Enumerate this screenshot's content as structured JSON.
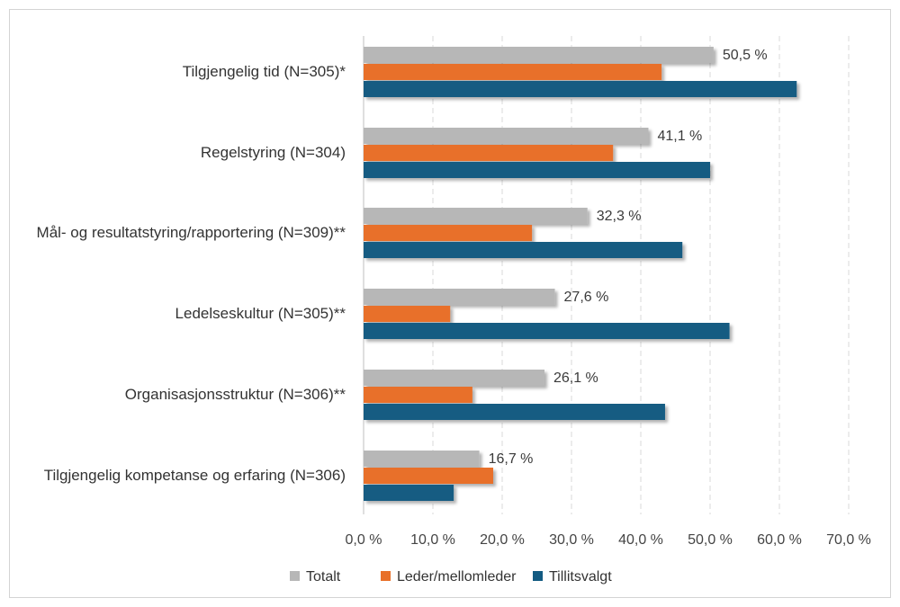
{
  "chart_data": {
    "type": "bar",
    "orientation": "horizontal",
    "title": "",
    "xlabel": "",
    "ylabel": "",
    "xlim": [
      0,
      70
    ],
    "x_ticks": [
      "0,0 %",
      "10,0 %",
      "20,0 %",
      "30,0 %",
      "40,0 %",
      "50,0 %",
      "60,0 %",
      "70,0 %"
    ],
    "x_tick_values": [
      0,
      10,
      20,
      30,
      40,
      50,
      60,
      70
    ],
    "grid": "vertical-dashed",
    "legend_position": "bottom",
    "categories": [
      "Tilgjengelig tid (N=305)*",
      "Regelstyring (N=304)",
      "Mål- og resultatstyring/rapportering (N=309)**",
      "Ledelseskultur (N=305)**",
      "Organisasjonsstruktur (N=306)**",
      "Tilgjengelig kompetanse og erfaring (N=306)"
    ],
    "series": [
      {
        "name": "Totalt",
        "color": "#b7b7b7",
        "values": [
          50.5,
          41.1,
          32.3,
          27.6,
          26.1,
          16.7
        ],
        "data_labels": [
          "50,5 %",
          "41,1 %",
          "32,3 %",
          "27,6 %",
          "26,1 %",
          "16,7 %"
        ]
      },
      {
        "name": "Leder/mellomleder",
        "color": "#e8702a",
        "values": [
          43,
          36,
          24.3,
          12.5,
          15.7,
          18.7
        ]
      },
      {
        "name": "Tillitsvalgt",
        "color": "#135b82",
        "values": [
          62.5,
          50,
          46,
          52.8,
          43.5,
          13
        ]
      }
    ]
  }
}
